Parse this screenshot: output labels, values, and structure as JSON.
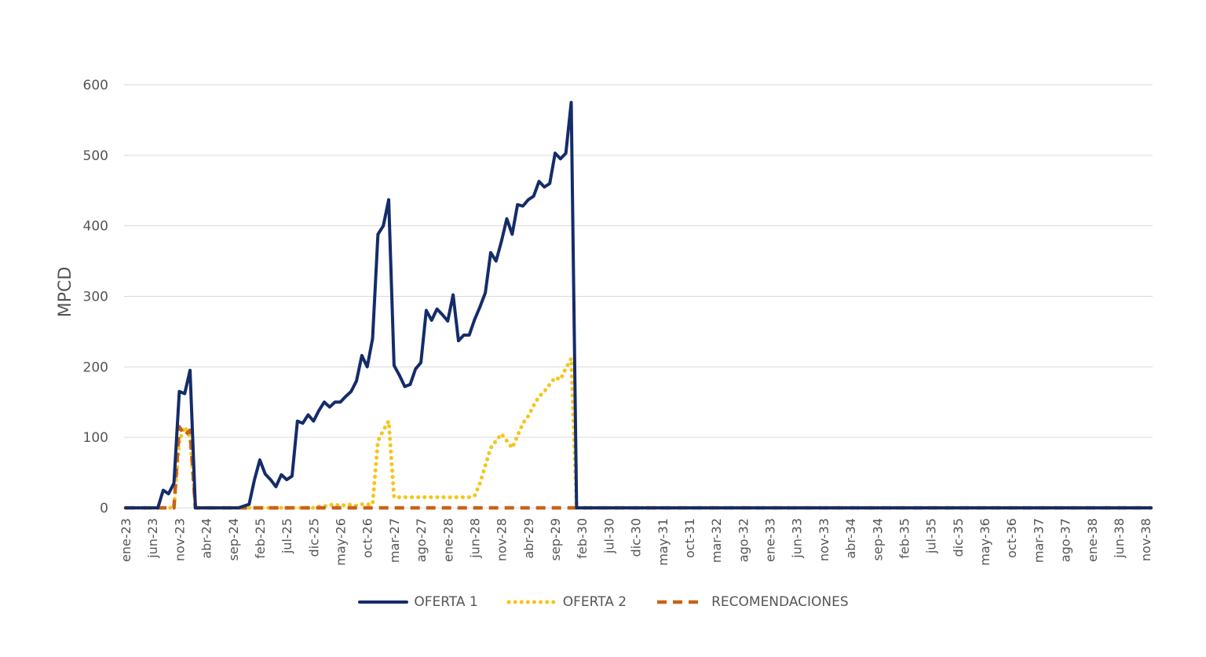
{
  "chart_data": {
    "type": "line",
    "ylabel": "MPCD",
    "xlabel": "",
    "title": "",
    "ylim": [
      0,
      600
    ],
    "yticks": [
      0,
      100,
      200,
      300,
      400,
      500,
      600
    ],
    "grid": "horizontal",
    "legend": "bottom",
    "x_start": "ene-23",
    "x_end": "dic-38",
    "tick_labels": [
      "ene-23",
      "jun-23",
      "nov-23",
      "abr-24",
      "sep-24",
      "feb-25",
      "jul-25",
      "dic-25",
      "may-26",
      "oct-26",
      "mar-27",
      "ago-27",
      "ene-28",
      "jun-28",
      "nov-28",
      "abr-29",
      "sep-29",
      "feb-30",
      "jul-30",
      "dic-30",
      "may-31",
      "oct-31",
      "mar-32",
      "ago-32",
      "ene-33",
      "jun-33",
      "nov-33",
      "abr-34",
      "sep-34",
      "feb-35",
      "jul-35",
      "dic-35",
      "may-36",
      "oct-36",
      "mar-37",
      "ago-37",
      "ene-38",
      "jun-38",
      "nov-38"
    ],
    "series": [
      {
        "name": "OFERTA 1",
        "color": "#152C6A",
        "style": "solid",
        "points": [
          [
            "ene-23",
            0
          ],
          [
            "jul-23",
            0
          ],
          [
            "ago-23",
            25
          ],
          [
            "sep-23",
            20
          ],
          [
            "oct-23",
            35
          ],
          [
            "nov-23",
            165
          ],
          [
            "dic-23",
            162
          ],
          [
            "ene-24",
            195
          ],
          [
            "feb-24",
            0
          ],
          [
            "mar-24",
            0
          ],
          [
            "oct-24",
            0
          ],
          [
            "dic-24",
            5
          ],
          [
            "ene-25",
            40
          ],
          [
            "feb-25",
            68
          ],
          [
            "mar-25",
            48
          ],
          [
            "abr-25",
            40
          ],
          [
            "may-25",
            30
          ],
          [
            "jun-25",
            47
          ],
          [
            "jul-25",
            40
          ],
          [
            "ago-25",
            45
          ],
          [
            "sep-25",
            123
          ],
          [
            "oct-25",
            120
          ],
          [
            "nov-25",
            132
          ],
          [
            "dic-25",
            123
          ],
          [
            "ene-26",
            138
          ],
          [
            "feb-26",
            150
          ],
          [
            "mar-26",
            143
          ],
          [
            "abr-26",
            150
          ],
          [
            "may-26",
            150
          ],
          [
            "jun-26",
            158
          ],
          [
            "jul-26",
            165
          ],
          [
            "ago-26",
            180
          ],
          [
            "sep-26",
            216
          ],
          [
            "oct-26",
            200
          ],
          [
            "nov-26",
            240
          ],
          [
            "dic-26",
            388
          ],
          [
            "ene-27",
            400
          ],
          [
            "feb-27",
            437
          ],
          [
            "mar-27",
            202
          ],
          [
            "abr-27",
            188
          ],
          [
            "may-27",
            172
          ],
          [
            "jun-27",
            175
          ],
          [
            "jul-27",
            197
          ],
          [
            "ago-27",
            206
          ],
          [
            "sep-27",
            280
          ],
          [
            "oct-27",
            266
          ],
          [
            "nov-27",
            282
          ],
          [
            "dic-27",
            274
          ],
          [
            "ene-28",
            265
          ],
          [
            "feb-28",
            302
          ],
          [
            "mar-28",
            237
          ],
          [
            "abr-28",
            245
          ],
          [
            "may-28",
            245
          ],
          [
            "jun-28",
            267
          ],
          [
            "jul-28",
            285
          ],
          [
            "ago-28",
            305
          ],
          [
            "sep-28",
            362
          ],
          [
            "oct-28",
            350
          ],
          [
            "nov-28",
            378
          ],
          [
            "dic-28",
            410
          ],
          [
            "ene-29",
            388
          ],
          [
            "feb-29",
            430
          ],
          [
            "mar-29",
            428
          ],
          [
            "abr-29",
            437
          ],
          [
            "may-29",
            442
          ],
          [
            "jun-29",
            463
          ],
          [
            "jul-29",
            455
          ],
          [
            "ago-29",
            460
          ],
          [
            "sep-29",
            503
          ],
          [
            "oct-29",
            495
          ],
          [
            "nov-29",
            503
          ],
          [
            "dic-29",
            575
          ],
          [
            "ene-30",
            0
          ],
          [
            "dic-38",
            0
          ]
        ]
      },
      {
        "name": "OFERTA 2",
        "color": "#F5C518",
        "style": "dotted",
        "points": [
          [
            "ene-23",
            0
          ],
          [
            "oct-23",
            0
          ],
          [
            "nov-23",
            95
          ],
          [
            "dic-23",
            115
          ],
          [
            "ene-24",
            100
          ],
          [
            "feb-24",
            0
          ],
          [
            "dic-25",
            0
          ],
          [
            "ene-26",
            2
          ],
          [
            "feb-26",
            2
          ],
          [
            "mar-26",
            5
          ],
          [
            "abr-26",
            3
          ],
          [
            "may-26",
            5
          ],
          [
            "jun-26",
            3
          ],
          [
            "jul-26",
            5
          ],
          [
            "ago-26",
            3
          ],
          [
            "sep-26",
            5
          ],
          [
            "oct-26",
            5
          ],
          [
            "nov-26",
            5
          ],
          [
            "dic-26",
            95
          ],
          [
            "ene-27",
            110
          ],
          [
            "feb-27",
            123
          ],
          [
            "mar-27",
            15
          ],
          [
            "abr-27",
            15
          ],
          [
            "may-27",
            15
          ],
          [
            "jun-27",
            15
          ],
          [
            "jul-27",
            15
          ],
          [
            "ago-27",
            15
          ],
          [
            "sep-27",
            15
          ],
          [
            "oct-27",
            15
          ],
          [
            "nov-27",
            15
          ],
          [
            "dic-27",
            15
          ],
          [
            "ene-28",
            15
          ],
          [
            "feb-28",
            15
          ],
          [
            "mar-28",
            15
          ],
          [
            "abr-28",
            15
          ],
          [
            "may-28",
            15
          ],
          [
            "jun-28",
            17
          ],
          [
            "jul-28",
            35
          ],
          [
            "ago-28",
            60
          ],
          [
            "sep-28",
            85
          ],
          [
            "oct-28",
            95
          ],
          [
            "nov-28",
            105
          ],
          [
            "dic-28",
            95
          ],
          [
            "ene-29",
            85
          ],
          [
            "feb-29",
            102
          ],
          [
            "mar-29",
            120
          ],
          [
            "abr-29",
            130
          ],
          [
            "may-29",
            145
          ],
          [
            "jun-29",
            158
          ],
          [
            "jul-29",
            165
          ],
          [
            "ago-29",
            175
          ],
          [
            "sep-29",
            185
          ],
          [
            "oct-29",
            182
          ],
          [
            "nov-29",
            198
          ],
          [
            "dic-29",
            212
          ],
          [
            "ene-30",
            0
          ],
          [
            "dic-38",
            0
          ]
        ]
      },
      {
        "name": "RECOMENDACIONES",
        "color": "#C8621A",
        "style": "dashed",
        "points": [
          [
            "ene-23",
            0
          ],
          [
            "oct-23",
            0
          ],
          [
            "nov-23",
            115
          ],
          [
            "dic-23",
            103
          ],
          [
            "ene-24",
            110
          ],
          [
            "feb-24",
            0
          ],
          [
            "dic-38",
            0
          ]
        ]
      }
    ]
  }
}
